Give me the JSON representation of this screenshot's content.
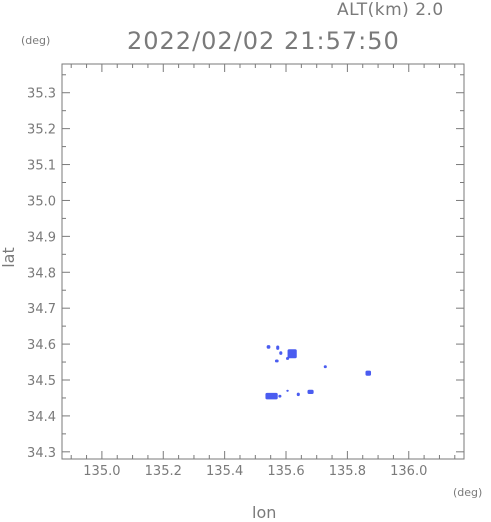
{
  "header": {
    "altitude_label": "ALT(km) 2.0",
    "timestamp": "2022/02/02 21:57:50"
  },
  "axis_units": {
    "x_unit": "(deg)",
    "y_unit": "(deg)"
  },
  "colors": {
    "axis": "#7a7a7a",
    "echo": "#4a5cf0",
    "background": "#ffffff"
  },
  "chart_data": {
    "type": "scatter",
    "title": "",
    "xlabel": "lon",
    "ylabel": "lat",
    "xlim": [
      134.87,
      136.18
    ],
    "ylim": [
      34.28,
      35.38
    ],
    "grid": false,
    "x_ticks": [
      135.0,
      135.2,
      135.4,
      135.6,
      135.8,
      136.0
    ],
    "x_tick_labels": [
      "135.0",
      "135.2",
      "135.4",
      "135.6",
      "135.8",
      "136.0"
    ],
    "y_ticks": [
      34.3,
      34.4,
      34.5,
      34.6,
      34.7,
      34.8,
      34.9,
      35.0,
      35.1,
      35.2,
      35.3
    ],
    "y_tick_labels": [
      "34.3",
      "34.4",
      "34.5",
      "34.6",
      "34.7",
      "34.8",
      "34.9",
      "35.0",
      "35.1",
      "35.2",
      "35.3"
    ],
    "points": [
      {
        "x": 135.543,
        "y": 34.592,
        "w": 0.012,
        "h": 0.01
      },
      {
        "x": 135.573,
        "y": 34.59,
        "w": 0.01,
        "h": 0.012
      },
      {
        "x": 135.583,
        "y": 34.575,
        "w": 0.01,
        "h": 0.01
      },
      {
        "x": 135.62,
        "y": 34.573,
        "w": 0.03,
        "h": 0.025
      },
      {
        "x": 135.605,
        "y": 34.56,
        "w": 0.01,
        "h": 0.008
      },
      {
        "x": 135.57,
        "y": 34.553,
        "w": 0.012,
        "h": 0.008
      },
      {
        "x": 135.728,
        "y": 34.537,
        "w": 0.01,
        "h": 0.008
      },
      {
        "x": 135.868,
        "y": 34.519,
        "w": 0.018,
        "h": 0.014
      },
      {
        "x": 135.605,
        "y": 34.47,
        "w": 0.008,
        "h": 0.006
      },
      {
        "x": 135.68,
        "y": 34.467,
        "w": 0.02,
        "h": 0.012
      },
      {
        "x": 135.64,
        "y": 34.46,
        "w": 0.01,
        "h": 0.01
      },
      {
        "x": 135.553,
        "y": 34.455,
        "w": 0.04,
        "h": 0.018
      },
      {
        "x": 135.58,
        "y": 34.455,
        "w": 0.01,
        "h": 0.008
      }
    ]
  }
}
